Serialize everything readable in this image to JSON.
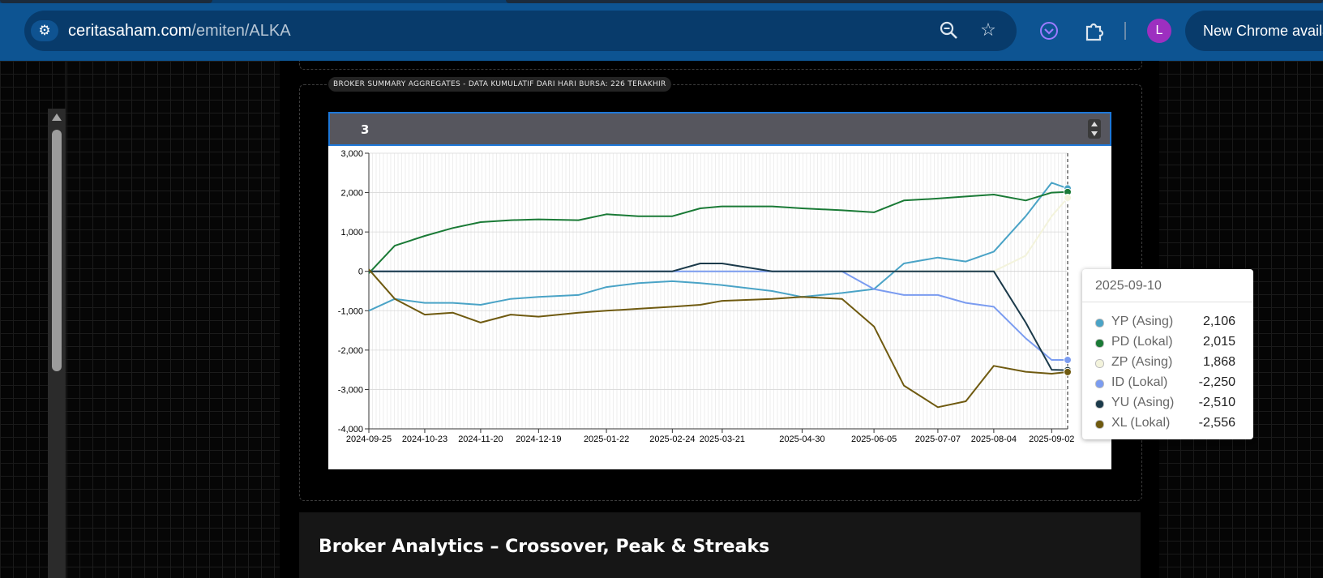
{
  "browser": {
    "url_host": "ceritasaham.com",
    "url_path": "/emiten/ALKA",
    "new_chrome_label": "New Chrome availa",
    "avatar_letter": "L"
  },
  "panel": {
    "title": "BROKER SUMMARY AGGREGATES - DATA KUMULATIF DARI HARI BURSA: 226 TERAKHIR",
    "spinbox_value": "3"
  },
  "tooltip": {
    "date": "2025-09-10",
    "rows": [
      {
        "name": "YP (Asing)",
        "value": "2,106",
        "color": "#4aa3c6"
      },
      {
        "name": "PD (Lokal)",
        "value": "2,015",
        "color": "#1a7a36"
      },
      {
        "name": "ZP (Asing)",
        "value": "1,868",
        "color": "#f3f3dc"
      },
      {
        "name": "ID (Lokal)",
        "value": "-2,250",
        "color": "#7b9cf0"
      },
      {
        "name": "YU (Asing)",
        "value": "-2,510",
        "color": "#1b3a4a"
      },
      {
        "name": "XL (Lokal)",
        "value": "-2,556",
        "color": "#6f5a10"
      }
    ]
  },
  "chart_data": {
    "type": "line",
    "ylim": [
      -4000,
      3000
    ],
    "yticks": [
      "3,000",
      "2,000",
      "1,000",
      "0",
      "-1,000",
      "-2,000",
      "-3,000",
      "-4,000"
    ],
    "ytick_values": [
      3000,
      2000,
      1000,
      0,
      -1000,
      -2000,
      -3000,
      -4000
    ],
    "xtick_labels": [
      "2024-09-25",
      "2024-10-23",
      "2024-11-20",
      "2024-12-19",
      "2025-01-22",
      "2025-02-24",
      "2025-03-21",
      "2025-04-30",
      "2025-06-05",
      "2025-07-07",
      "2025-08-04",
      "2025-09-02"
    ],
    "x": [
      "2024-09-25",
      "2024-10-08",
      "2024-10-23",
      "2024-11-06",
      "2024-11-20",
      "2024-12-05",
      "2024-12-19",
      "2025-01-08",
      "2025-01-22",
      "2025-02-07",
      "2025-02-24",
      "2025-03-10",
      "2025-03-21",
      "2025-04-15",
      "2025-04-30",
      "2025-05-20",
      "2025-06-05",
      "2025-06-20",
      "2025-07-07",
      "2025-07-21",
      "2025-08-04",
      "2025-08-20",
      "2025-09-02",
      "2025-09-10"
    ],
    "grid": true,
    "series": [
      {
        "name": "YP (Asing)",
        "color": "#4aa3c6",
        "values": [
          -1000,
          -700,
          -800,
          -800,
          -850,
          -700,
          -650,
          -600,
          -400,
          -300,
          -250,
          -300,
          -350,
          -500,
          -650,
          -550,
          -450,
          200,
          350,
          250,
          500,
          1400,
          2250,
          2106
        ]
      },
      {
        "name": "PD (Lokal)",
        "color": "#1a7a36",
        "values": [
          -50,
          650,
          900,
          1100,
          1250,
          1300,
          1320,
          1300,
          1450,
          1400,
          1400,
          1600,
          1650,
          1650,
          1600,
          1550,
          1500,
          1800,
          1850,
          1900,
          1950,
          1800,
          2000,
          2015
        ]
      },
      {
        "name": "ZP (Asing)",
        "color": "#f3f3dc",
        "values": [
          0,
          0,
          0,
          0,
          0,
          0,
          0,
          0,
          0,
          0,
          0,
          0,
          0,
          0,
          0,
          0,
          0,
          0,
          0,
          0,
          0,
          400,
          1400,
          1868
        ]
      },
      {
        "name": "ID (Lokal)",
        "color": "#7b9cf0",
        "values": [
          0,
          0,
          0,
          0,
          0,
          0,
          0,
          0,
          0,
          0,
          0,
          0,
          0,
          0,
          0,
          0,
          -450,
          -600,
          -600,
          -800,
          -900,
          -1700,
          -2250,
          -2250
        ]
      },
      {
        "name": "YU (Asing)",
        "color": "#1b3a4a",
        "values": [
          0,
          0,
          0,
          0,
          0,
          0,
          0,
          0,
          0,
          0,
          0,
          200,
          200,
          0,
          0,
          0,
          0,
          0,
          0,
          0,
          0,
          -1300,
          -2500,
          -2510
        ]
      },
      {
        "name": "XL (Lokal)",
        "color": "#6f5a10",
        "values": [
          50,
          -700,
          -1100,
          -1050,
          -1300,
          -1100,
          -1150,
          -1050,
          -1000,
          -950,
          -900,
          -850,
          -750,
          -700,
          -650,
          -700,
          -1400,
          -2900,
          -3450,
          -3300,
          -2400,
          -2550,
          -2600,
          -2556
        ]
      }
    ]
  }
}
